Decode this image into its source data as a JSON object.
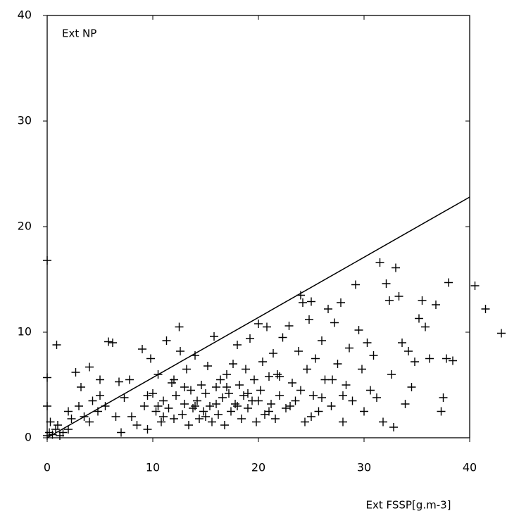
{
  "chart_data": {
    "type": "scatter",
    "annotation": "Ext NP",
    "x_label": "Ext FSSP[g.m-3]",
    "xlim": [
      0,
      40
    ],
    "ylim": [
      0,
      40
    ],
    "xticks": [
      0,
      10,
      20,
      30,
      40
    ],
    "yticks": [
      0,
      10,
      20,
      30,
      40
    ],
    "color": "#000000",
    "fit_line": {
      "x": [
        0,
        40
      ],
      "values": [
        0,
        22.8
      ]
    },
    "x": [
      0,
      0.2,
      0.3,
      0,
      0,
      0,
      0.5,
      0.8,
      1,
      0.9,
      1.5,
      2,
      2.3,
      2.7,
      3.2,
      3.5,
      4,
      4.3,
      4.8,
      5,
      5.5,
      5.8,
      6.2,
      6.5,
      6.8,
      7,
      7.3,
      7.8,
      8,
      8.5,
      9,
      9.2,
      9.5,
      9.8,
      10,
      10.3,
      10.5,
      10.8,
      11,
      11.3,
      11.5,
      11.8,
      12,
      12.2,
      12.5,
      12.6,
      12.8,
      13,
      13.2,
      13.4,
      13.6,
      13.8,
      14,
      14.2,
      14.4,
      14.6,
      14.8,
      15,
      15.2,
      15.4,
      15.6,
      15.8,
      16,
      16.2,
      16.4,
      16.6,
      16.8,
      17,
      17.2,
      17.4,
      17.6,
      17.8,
      18,
      18.2,
      18.4,
      18.6,
      18.8,
      19,
      19.2,
      19.4,
      19.6,
      19.8,
      20,
      20.2,
      20.4,
      20.6,
      20.8,
      21,
      21.2,
      21.4,
      21.6,
      21.8,
      22,
      22.3,
      22.6,
      22.9,
      23.2,
      23.5,
      23.8,
      24,
      24.2,
      24.4,
      24.6,
      24.8,
      25,
      25.2,
      25.4,
      25.7,
      26,
      26.3,
      26.6,
      26.9,
      27.2,
      27.5,
      27.8,
      28,
      28.3,
      28.6,
      28.9,
      29.2,
      29.5,
      29.8,
      30,
      30.3,
      30.6,
      30.9,
      31.2,
      31.5,
      31.8,
      32.1,
      32.4,
      32.6,
      32.8,
      33,
      33.3,
      33.6,
      33.9,
      34.2,
      34.5,
      34.8,
      35.2,
      35.5,
      35.8,
      36.2,
      36.8,
      37.5,
      37.3,
      37.8,
      38,
      38.4,
      40.5,
      41.5,
      43,
      9.5,
      10.5,
      11,
      12,
      13,
      14,
      15,
      16,
      17,
      18,
      19,
      20,
      21,
      22,
      23,
      24,
      25,
      26,
      27,
      28,
      1.2,
      2,
      3,
      4,
      5
    ],
    "values": [
      0.2,
      0.5,
      1.5,
      3,
      5.7,
      16.8,
      0.3,
      0.8,
      1.2,
      8.8,
      0.5,
      2.5,
      1.8,
      6.2,
      4.8,
      2,
      6.7,
      3.5,
      2.5,
      5.5,
      3,
      9.1,
      9,
      2,
      5.3,
      0.5,
      3.8,
      5.5,
      2,
      1.2,
      8.4,
      3,
      0.8,
      7.5,
      4.2,
      2.5,
      6,
      1.5,
      3.5,
      9.2,
      2.8,
      5.2,
      1.8,
      4,
      10.5,
      8.2,
      2.2,
      3.2,
      6.5,
      1.2,
      4.5,
      2.8,
      7.8,
      3.5,
      1.8,
      5,
      2.5,
      4.2,
      6.8,
      3,
      1.5,
      9.6,
      4.8,
      2.2,
      5.5,
      3.8,
      1.2,
      6,
      4.2,
      2.5,
      7,
      3.2,
      8.8,
      5,
      1.8,
      4,
      6.5,
      2.8,
      9.4,
      3.5,
      5.5,
      1.5,
      10.8,
      4.5,
      7.2,
      2.2,
      10.5,
      5.8,
      3.2,
      8,
      1.8,
      6,
      4,
      9.5,
      2.8,
      10.6,
      5.2,
      3.5,
      8.2,
      13.5,
      12.8,
      1.5,
      6.5,
      11.2,
      12.9,
      4,
      7.5,
      2.5,
      9.2,
      5.5,
      12.2,
      3,
      10.9,
      7,
      12.8,
      1.5,
      5,
      8.5,
      3.5,
      14.5,
      10.2,
      6.5,
      2.5,
      9,
      4.5,
      7.8,
      3.8,
      16.6,
      1.5,
      14.6,
      13,
      6,
      1,
      16.1,
      13.4,
      9,
      3.2,
      8.2,
      4.8,
      7.2,
      11.3,
      13,
      10.5,
      7.5,
      12.6,
      3.8,
      2.5,
      7.5,
      14.7,
      7.3,
      14.4,
      12.2,
      9.9,
      4,
      3,
      2,
      5.5,
      4.8,
      3,
      2,
      3.2,
      4.8,
      3,
      4.2,
      3.5,
      2.5,
      5.8,
      3,
      4.5,
      2,
      3.8,
      5.5,
      4,
      0.2,
      0.8,
      3,
      1.5,
      4
    ]
  }
}
